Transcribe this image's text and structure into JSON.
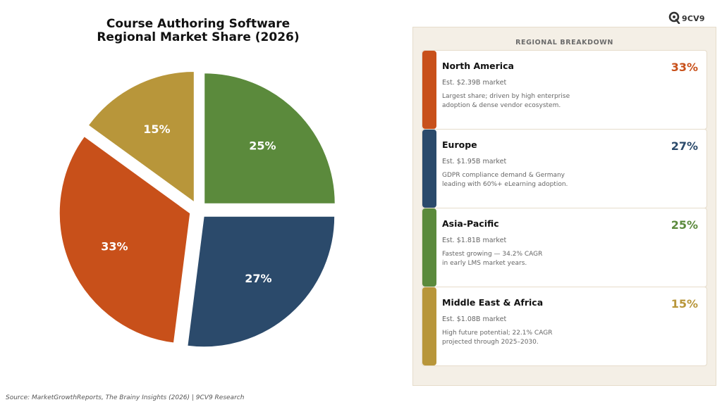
{
  "chart_data": {
    "type": "pie",
    "title_lines": [
      "Course Authoring Software",
      "Regional Market Share (2026)"
    ],
    "slices": [
      {
        "name": "Asia-Pacific",
        "value": 25,
        "label": "25%",
        "color": "#5b8a3c"
      },
      {
        "name": "Europe",
        "value": 27,
        "label": "27%",
        "color": "#2b4a6b"
      },
      {
        "name": "North America",
        "value": 33,
        "label": "33%",
        "color": "#c8501a"
      },
      {
        "name": "Middle East & Africa",
        "value": 15,
        "label": "15%",
        "color": "#b8963a"
      }
    ],
    "start_angle_deg": 90,
    "direction": "clockwise",
    "exploded": true
  },
  "logo": {
    "text": "9CV9"
  },
  "panel": {
    "title": "REGIONAL BREAKDOWN",
    "cards": [
      {
        "name": "North America",
        "percent": "33%",
        "color": "#c8501a",
        "estimate": "Est. $2.39B market",
        "description": [
          "Largest share; driven by high enterprise",
          "adoption & dense vendor ecosystem."
        ]
      },
      {
        "name": "Europe",
        "percent": "27%",
        "color": "#2b4a6b",
        "estimate": "Est. $1.95B market",
        "description": [
          "GDPR compliance demand & Germany",
          "leading with 60%+ eLearning adoption."
        ]
      },
      {
        "name": "Asia-Pacific",
        "percent": "25%",
        "color": "#5b8a3c",
        "estimate": "Est. $1.81B market",
        "description": [
          "Fastest growing — 34.2% CAGR",
          "in early LMS market years."
        ]
      },
      {
        "name": "Middle East & Africa",
        "percent": "15%",
        "color": "#b8963a",
        "estimate": "Est. $1.08B market",
        "description": [
          "High future potential; 22.1% CAGR",
          "projected through 2025–2030."
        ]
      }
    ]
  },
  "source": "Source: MarketGrowthReports, The Brainy Insights (2026) | 9CV9 Research"
}
